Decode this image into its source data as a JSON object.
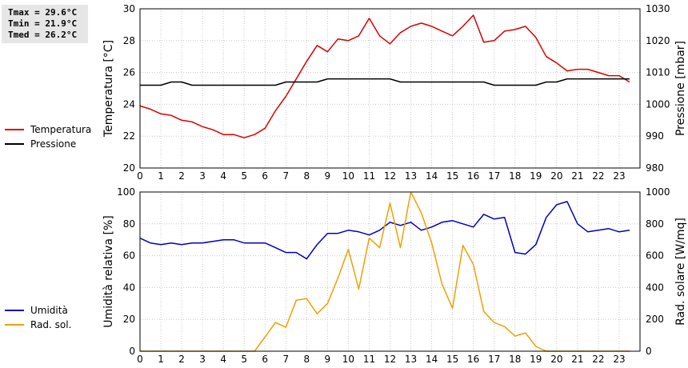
{
  "stats": {
    "tmax": "Tmax = 29.6°C",
    "tmin": "Tmin = 21.9°C",
    "tmed": "Tmed = 26.2°C"
  },
  "legend_top": [
    {
      "label": "Temperatura",
      "color": "#dd0000"
    },
    {
      "label": "Pressione",
      "color": "#000000"
    }
  ],
  "legend_bottom": [
    {
      "label": "Umidità",
      "color": "#0000c0"
    },
    {
      "label": "Rad. sol.",
      "color": "#f0a000"
    }
  ],
  "chart_data": [
    {
      "type": "line",
      "xlim": [
        0,
        24
      ],
      "xticks": [
        0,
        1,
        2,
        3,
        4,
        5,
        6,
        7,
        8,
        9,
        10,
        11,
        12,
        13,
        14,
        15,
        16,
        17,
        18,
        19,
        20,
        21,
        22,
        23
      ],
      "grid": true,
      "y_left": {
        "label": "Temperatura [°C]",
        "lim": [
          20,
          30
        ],
        "ticks": [
          20,
          22,
          24,
          26,
          28,
          30
        ]
      },
      "y_right": {
        "label": "Pressione [mbar]",
        "lim": [
          980,
          1030
        ],
        "ticks": [
          980,
          990,
          1000,
          1010,
          1020,
          1030
        ]
      },
      "series": [
        {
          "name": "Temperatura",
          "axis": "left",
          "color": "#dd0000",
          "x": [
            0,
            0.5,
            1,
            1.5,
            2,
            2.5,
            3,
            3.5,
            4,
            4.5,
            5,
            5.5,
            6,
            6.5,
            7,
            7.5,
            8,
            8.5,
            9,
            9.5,
            10,
            10.5,
            11,
            11.5,
            12,
            12.5,
            13,
            13.5,
            14,
            14.5,
            15,
            15.5,
            16,
            16.5,
            17,
            17.5,
            18,
            18.5,
            19,
            19.5,
            20,
            20.5,
            21,
            21.5,
            22,
            22.5,
            23,
            23.5
          ],
          "y": [
            23.9,
            23.7,
            23.4,
            23.3,
            23.0,
            22.9,
            22.6,
            22.4,
            22.1,
            22.1,
            21.9,
            22.1,
            22.5,
            23.6,
            24.5,
            25.6,
            26.7,
            27.7,
            27.3,
            28.1,
            28.0,
            28.3,
            29.4,
            28.3,
            27.8,
            28.5,
            28.9,
            29.1,
            28.9,
            28.6,
            28.3,
            28.9,
            29.6,
            27.9,
            28.0,
            28.6,
            28.7,
            28.9,
            28.2,
            27.0,
            26.6,
            26.1,
            26.2,
            26.2,
            26.0,
            25.8,
            25.8,
            25.4
          ]
        },
        {
          "name": "Pressione",
          "axis": "right",
          "color": "#000000",
          "x": [
            0,
            1,
            1.5,
            2,
            2.5,
            3,
            4,
            5,
            6,
            6.5,
            7,
            8,
            8.5,
            9,
            10,
            11,
            12,
            12.5,
            13,
            14,
            15,
            16,
            16.5,
            17,
            18,
            19,
            19.5,
            20,
            20.5,
            21,
            22,
            23,
            23.5
          ],
          "y": [
            1006,
            1006,
            1007,
            1007,
            1006,
            1006,
            1006,
            1006,
            1006,
            1006,
            1007,
            1007,
            1007,
            1008,
            1008,
            1008,
            1008,
            1007,
            1007,
            1007,
            1007,
            1007,
            1007,
            1006,
            1006,
            1006,
            1007,
            1007,
            1008,
            1008,
            1008,
            1008,
            1008
          ]
        }
      ]
    },
    {
      "type": "line",
      "xlim": [
        0,
        24
      ],
      "xticks": [
        0,
        1,
        2,
        3,
        4,
        5,
        6,
        7,
        8,
        9,
        10,
        11,
        12,
        13,
        14,
        15,
        16,
        17,
        18,
        19,
        20,
        21,
        22,
        23
      ],
      "grid": true,
      "y_left": {
        "label": "Umidità relativa [%]",
        "lim": [
          0,
          100
        ],
        "ticks": [
          0,
          20,
          40,
          60,
          80,
          100
        ]
      },
      "y_right": {
        "label": "Rad. solare [W/mq]",
        "lim": [
          0,
          1000
        ],
        "ticks": [
          0,
          200,
          400,
          600,
          800,
          1000
        ]
      },
      "series": [
        {
          "name": "Umidità",
          "axis": "left",
          "color": "#0000c0",
          "x": [
            0,
            0.5,
            1,
            1.5,
            2,
            2.5,
            3,
            3.5,
            4,
            4.5,
            5,
            5.5,
            6,
            6.5,
            7,
            7.5,
            8,
            8.5,
            9,
            9.5,
            10,
            10.5,
            11,
            11.5,
            12,
            12.5,
            13,
            13.5,
            14,
            14.5,
            15,
            15.5,
            16,
            16.5,
            17,
            17.5,
            18,
            18.5,
            19,
            19.5,
            20,
            20.5,
            21,
            21.5,
            22,
            22.5,
            23,
            23.5
          ],
          "y": [
            71,
            68,
            67,
            68,
            67,
            68,
            68,
            69,
            70,
            70,
            68,
            68,
            68,
            65,
            62,
            62,
            58,
            67,
            74,
            74,
            76,
            75,
            73,
            76,
            81,
            79,
            81,
            76,
            78,
            81,
            82,
            80,
            78,
            86,
            83,
            84,
            62,
            61,
            67,
            84,
            92,
            94,
            80,
            75,
            76,
            77,
            75,
            76
          ]
        },
        {
          "name": "Rad. sol.",
          "axis": "right",
          "color": "#f0a000",
          "x": [
            0,
            0.5,
            1,
            1.5,
            2,
            2.5,
            3,
            3.5,
            4,
            4.5,
            5,
            5.5,
            6,
            6.5,
            7,
            7.5,
            8,
            8.5,
            9,
            9.5,
            10,
            10.5,
            11,
            11.5,
            12,
            12.5,
            13,
            13.5,
            14,
            14.5,
            15,
            15.5,
            16,
            16.5,
            17,
            17.5,
            18,
            18.5,
            19,
            19.5,
            20,
            20.5,
            21,
            21.5,
            22,
            22.5,
            23,
            23.5
          ],
          "y": [
            0,
            0,
            0,
            0,
            0,
            0,
            0,
            0,
            0,
            0,
            0,
            0,
            90,
            180,
            150,
            320,
            330,
            235,
            300,
            460,
            640,
            390,
            710,
            650,
            930,
            650,
            1000,
            870,
            680,
            420,
            270,
            665,
            545,
            250,
            180,
            155,
            95,
            115,
            30,
            0,
            0,
            0,
            0,
            0,
            0,
            0,
            0,
            0
          ]
        }
      ]
    }
  ]
}
